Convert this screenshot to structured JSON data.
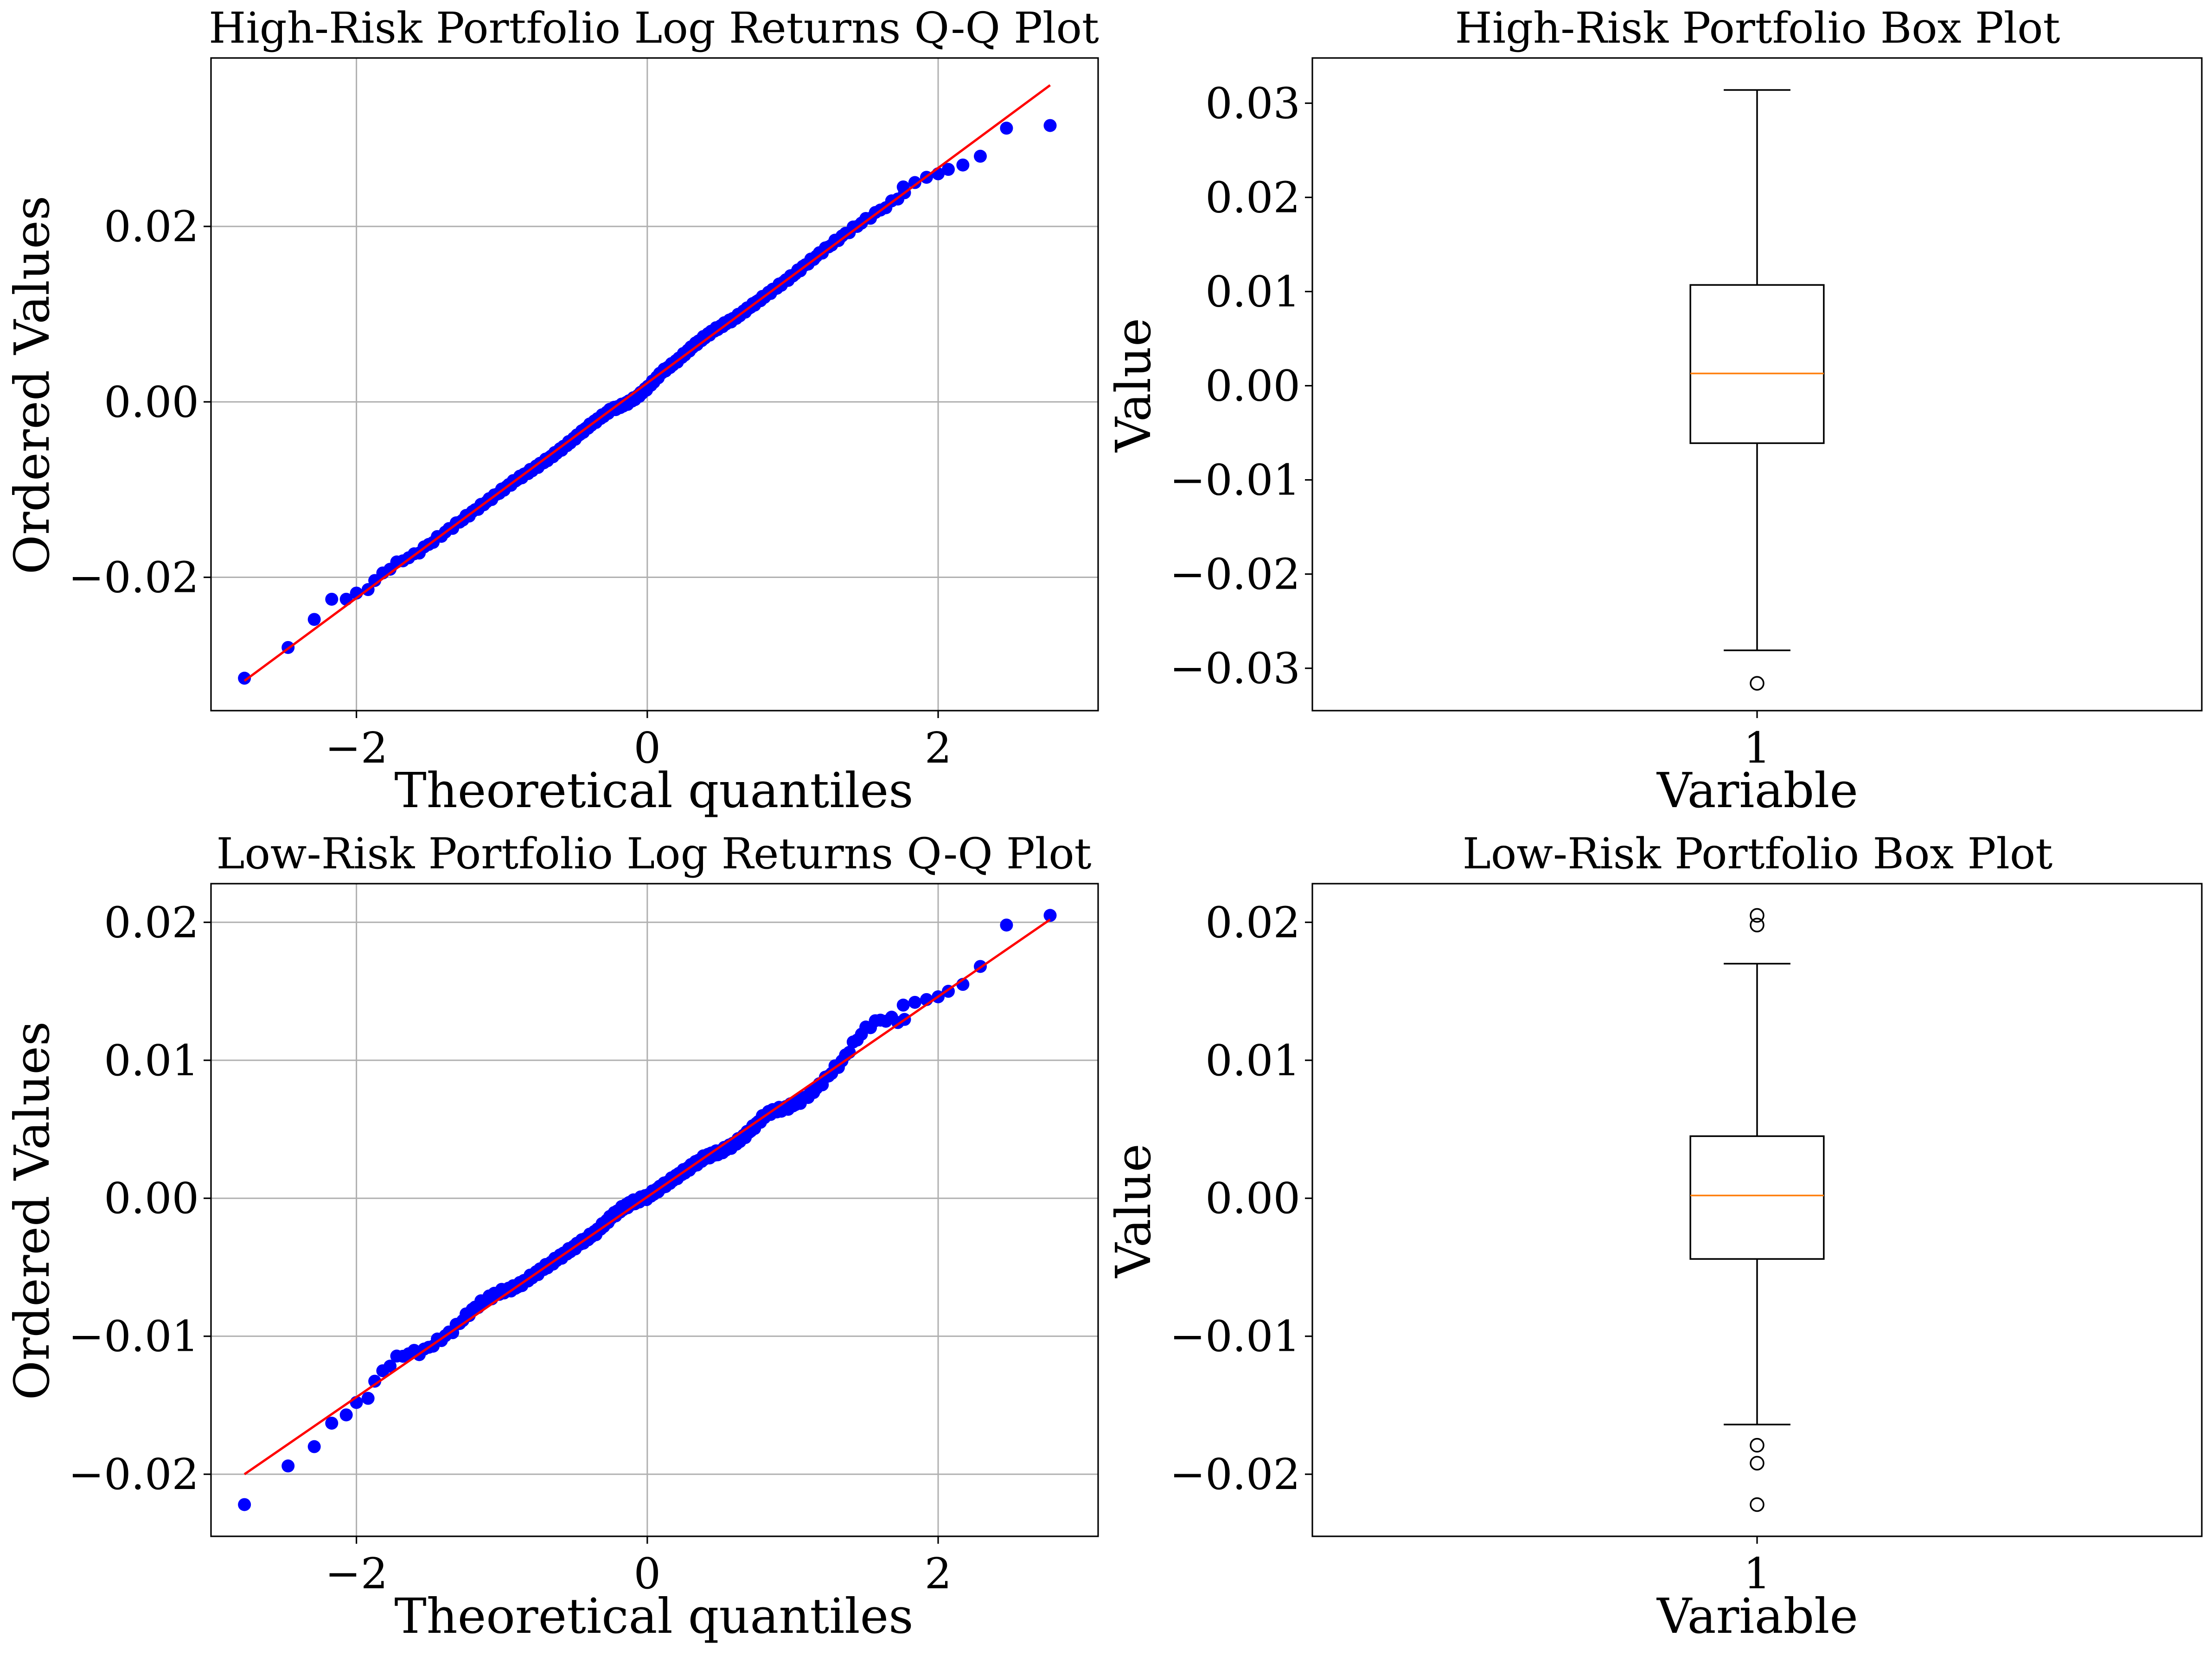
{
  "colors": {
    "points": "#0000ff",
    "fit_line": "#ff0000",
    "median": "#ff7f0e",
    "box": "#000000",
    "grid": "#b0b0b0"
  },
  "chart_data": [
    {
      "id": "hr_qq",
      "type": "scatter",
      "title": "High-Risk Portfolio Log Returns Q-Q Plot",
      "xlabel": "Theoretical quantiles",
      "ylabel": "Ordered Values",
      "xlim": [
        -3.0,
        3.1
      ],
      "ylim": [
        -0.0352,
        0.0392
      ],
      "xticks": [
        -2,
        0,
        2
      ],
      "xtick_labels": [
        "−2",
        "0",
        "2"
      ],
      "yticks": [
        -0.02,
        0.0,
        0.02
      ],
      "ytick_labels": [
        "−0.02",
        "0.00",
        "0.02"
      ],
      "grid": true,
      "fit_line": {
        "x": [
          -2.77,
          2.77
        ],
        "y": [
          -0.0318,
          0.0361
        ]
      },
      "fit": {
        "slope": 0.01225,
        "intercept": 0.00215
      },
      "n_points": 250,
      "tail_points": {
        "x": [
          -2.77,
          -2.47,
          -2.29,
          -2.17,
          -2.07,
          -2.0,
          -1.92,
          1.76,
          1.84,
          1.92,
          2.0,
          2.07,
          2.17,
          2.29,
          2.47,
          2.77
        ],
        "y": [
          -0.0315,
          -0.028,
          -0.0248,
          -0.0225,
          -0.0225,
          -0.0218,
          -0.0214,
          0.0245,
          0.025,
          0.0256,
          0.026,
          0.0265,
          0.027,
          0.028,
          0.0312,
          0.0315
        ]
      },
      "deviations": [
        {
          "x_from": -1.95,
          "x_to": -1.6,
          "d": 0.0006
        },
        {
          "x_from": -0.9,
          "x_to": -0.4,
          "d": -0.0003
        },
        {
          "x_from": -0.25,
          "x_to": 0.1,
          "d": -0.0007
        },
        {
          "x_from": 0.2,
          "x_to": 0.6,
          "d": 0.0004
        },
        {
          "x_from": 1.0,
          "x_to": 1.65,
          "d": 0.0003
        }
      ]
    },
    {
      "id": "hr_box",
      "type": "box",
      "title": "High-Risk Portfolio Box Plot",
      "xlabel": "Variable",
      "ylabel": "Value",
      "ylim": [
        -0.0345,
        0.0348
      ],
      "yticks": [
        -0.03,
        -0.02,
        -0.01,
        0.0,
        0.01,
        0.02,
        0.03
      ],
      "ytick_labels": [
        "−0.03",
        "−0.02",
        "−0.01",
        "0.00",
        "0.01",
        "0.02",
        "0.03"
      ],
      "xtick_labels": [
        "1"
      ],
      "grid": false,
      "box": {
        "whisker_low": -0.0281,
        "q1": -0.0061,
        "median": 0.0013,
        "q3": 0.0107,
        "whisker_high": 0.0314,
        "outliers": [
          -0.0316
        ]
      }
    },
    {
      "id": "lr_qq",
      "type": "scatter",
      "title": "Low-Risk Portfolio Log Returns Q-Q Plot",
      "xlabel": "Theoretical quantiles",
      "ylabel": "Ordered Values",
      "xlim": [
        -3.0,
        3.1
      ],
      "ylim": [
        -0.0245,
        0.0228
      ],
      "xticks": [
        -2,
        0,
        2
      ],
      "xtick_labels": [
        "−2",
        "0",
        "2"
      ],
      "yticks": [
        -0.02,
        -0.01,
        0.0,
        0.01,
        0.02
      ],
      "ytick_labels": [
        "−0.02",
        "−0.01",
        "0.00",
        "0.01",
        "0.02"
      ],
      "grid": true,
      "fit_line": {
        "x": [
          -2.77,
          2.77
        ],
        "y": [
          -0.02,
          0.0202
        ]
      },
      "fit": {
        "slope": 0.00726,
        "intercept": 0.0001
      },
      "n_points": 250,
      "tail_points": {
        "x": [
          -2.77,
          -2.47,
          -2.29,
          -2.17,
          -2.07,
          -2.0,
          -1.92,
          1.76,
          1.84,
          1.92,
          2.0,
          2.07,
          2.17,
          2.29,
          2.47,
          2.77
        ],
        "y": [
          -0.0222,
          -0.0194,
          -0.018,
          -0.0163,
          -0.0157,
          -0.0148,
          -0.0145,
          0.014,
          0.0142,
          0.0144,
          0.0146,
          0.015,
          0.0155,
          0.0168,
          0.0198,
          0.0205
        ]
      },
      "deviations": [
        {
          "x_from": -1.9,
          "x_to": -1.55,
          "d": 0.0008
        },
        {
          "x_from": -1.35,
          "x_to": -0.9,
          "d": 0.0006
        },
        {
          "x_from": -0.35,
          "x_to": 0.0,
          "d": 0.0004
        },
        {
          "x_from": 0.4,
          "x_to": 0.8,
          "d": -0.0005
        },
        {
          "x_from": 0.85,
          "x_to": 1.3,
          "d": -0.0007
        },
        {
          "x_from": 1.33,
          "x_to": 1.75,
          "d": 0.0013
        }
      ]
    },
    {
      "id": "lr_box",
      "type": "box",
      "title": "Low-Risk Portfolio Box Plot",
      "xlabel": "Variable",
      "ylabel": "Value",
      "ylim": [
        -0.0245,
        0.0228
      ],
      "yticks": [
        -0.02,
        -0.01,
        0.0,
        0.01,
        0.02
      ],
      "ytick_labels": [
        "−0.02",
        "−0.01",
        "0.00",
        "0.01",
        "0.02"
      ],
      "xtick_labels": [
        "1"
      ],
      "grid": false,
      "box": {
        "whisker_low": -0.0164,
        "q1": -0.0044,
        "median": 0.0002,
        "q3": 0.0045,
        "whisker_high": 0.017,
        "outliers": [
          -0.0179,
          -0.0192,
          -0.0222,
          0.0198,
          0.0205
        ]
      }
    }
  ]
}
